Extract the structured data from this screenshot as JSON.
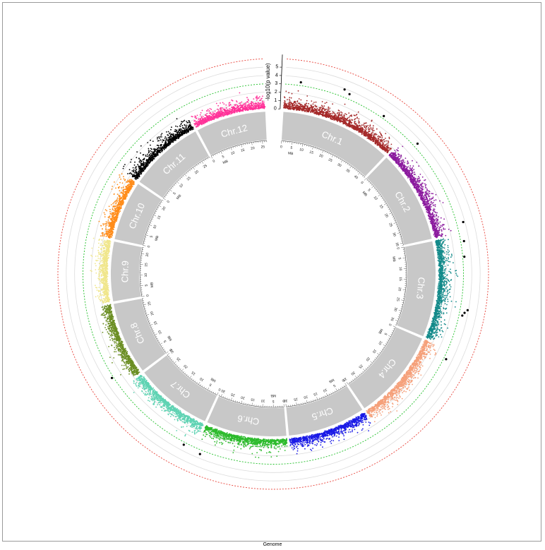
{
  "chart_data": {
    "type": "circular-manhattan",
    "xlabel": "Genome",
    "ylabel": "-log10(p value)",
    "y_ticks": [
      "0",
      "1",
      "2",
      "3",
      "4",
      "5"
    ],
    "ylim": [
      0,
      6
    ],
    "threshold_lines": [
      {
        "value": 3.0,
        "style": "dashed",
        "color": "#22c02a"
      },
      {
        "value": 6.0,
        "style": "dashed",
        "color": "#e8433a"
      }
    ],
    "unit_label": "MB",
    "chromosomes": [
      {
        "name": "Chr.1",
        "length": 43,
        "color": "#a52a2a",
        "ticks": [
          "0",
          "5",
          "10",
          "15",
          "20",
          "25",
          "30",
          "35",
          "40"
        ]
      },
      {
        "name": "Chr.2",
        "length": 36,
        "color": "#8b1a9e",
        "ticks": [
          "0",
          "5",
          "10",
          "15",
          "20",
          "25",
          "30",
          "35"
        ]
      },
      {
        "name": "Chr.3",
        "length": 37,
        "color": "#138a8a",
        "ticks": [
          "0",
          "5",
          "10",
          "15",
          "20",
          "25",
          "30",
          "35"
        ]
      },
      {
        "name": "Chr.4",
        "length": 35,
        "color": "#f5a07a",
        "ticks": [
          "0",
          "5",
          "10",
          "15",
          "20",
          "25",
          "30",
          "35"
        ]
      },
      {
        "name": "Chr.5",
        "length": 30,
        "color": "#1a1ae6",
        "ticks": [
          "0",
          "5",
          "10",
          "15",
          "20",
          "25",
          "30"
        ]
      },
      {
        "name": "Chr.6",
        "length": 31,
        "color": "#2dbb2d",
        "ticks": [
          "0",
          "5",
          "10",
          "15",
          "20",
          "25",
          "30"
        ]
      },
      {
        "name": "Chr.7",
        "length": 30,
        "color": "#5fd3b3",
        "ticks": [
          "0",
          "5",
          "10",
          "15",
          "20",
          "25",
          "30"
        ]
      },
      {
        "name": "Chr.8",
        "length": 28,
        "color": "#6b8e23",
        "ticks": [
          "0",
          "5",
          "10",
          "15",
          "20",
          "25"
        ]
      },
      {
        "name": "Chr.9",
        "length": 23,
        "color": "#f0e68c",
        "ticks": [
          "0",
          "5",
          "10",
          "15",
          "20"
        ]
      },
      {
        "name": "Chr.10",
        "length": 23,
        "color": "#ff8c1a",
        "ticks": [
          "0",
          "5",
          "10",
          "15",
          "20"
        ]
      },
      {
        "name": "Chr.11",
        "length": 29,
        "color": "#000000",
        "ticks": [
          "0",
          "5",
          "10",
          "15",
          "20",
          "25"
        ]
      },
      {
        "name": "Chr.12",
        "length": 27,
        "color": "#ff3399",
        "ticks": [
          "0",
          "5",
          "10",
          "15",
          "20",
          "25"
        ]
      }
    ],
    "significant_points": [
      {
        "chr": "Chr.1",
        "pos": 5,
        "y": 3.4
      },
      {
        "chr": "Chr.1",
        "pos": 19,
        "y": 3.9
      },
      {
        "chr": "Chr.1",
        "pos": 21,
        "y": 3.6
      },
      {
        "chr": "Chr.1",
        "pos": 34,
        "y": 3.3
      },
      {
        "chr": "Chr.2",
        "pos": 4,
        "y": 3.5
      },
      {
        "chr": "Chr.2",
        "pos": 33,
        "y": 3.8
      },
      {
        "chr": "Chr.3",
        "pos": 2,
        "y": 3.4
      },
      {
        "chr": "Chr.3",
        "pos": 7,
        "y": 3.2
      },
      {
        "chr": "Chr.3",
        "pos": 24,
        "y": 3.9
      },
      {
        "chr": "Chr.3",
        "pos": 25,
        "y": 3.6
      },
      {
        "chr": "Chr.3",
        "pos": 26,
        "y": 3.4
      },
      {
        "chr": "Chr.4",
        "pos": 3,
        "y": 3.3
      },
      {
        "chr": "Chr.6",
        "pos": 29,
        "y": 3.5
      },
      {
        "chr": "Chr.7",
        "pos": 3,
        "y": 3.3
      },
      {
        "chr": "Chr.8",
        "pos": 4,
        "y": 3.2
      }
    ]
  }
}
